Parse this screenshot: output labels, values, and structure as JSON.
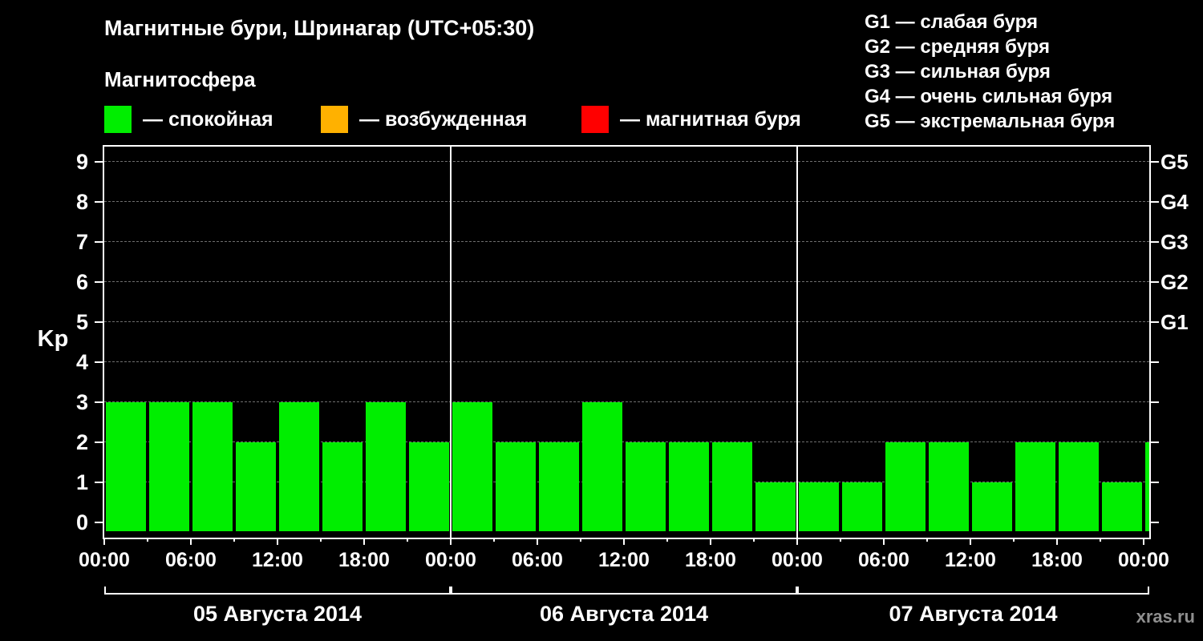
{
  "title": "Магнитные бури, Шринагар (UTC+05:30)",
  "legend": {
    "heading": "Магнитосфера",
    "items": [
      {
        "label": "— спокойная",
        "color": "#00ee00"
      },
      {
        "label": "— возбужденная",
        "color": "#ffb100"
      },
      {
        "label": "— магнитная буря",
        "color": "#ff0000"
      }
    ]
  },
  "storm_scale": {
    "items": [
      "G1 — слабая буря",
      "G2 — средняя буря",
      "G3 — сильная буря",
      "G4 — очень сильная буря",
      "G5 — экстремальная буря"
    ]
  },
  "watermark": "xras.ru",
  "chart_data": {
    "type": "bar",
    "title": "Магнитные бури, Шринагар (UTC+05:30)",
    "ylabel": "Kp",
    "xlabel": "",
    "ylim": [
      0,
      9
    ],
    "interval_hours": 3,
    "bar_color": "#00ee00",
    "grid": "dashed horizontal gridlines at each integer, solid white vertical lines at day boundaries",
    "legend_position": "top",
    "days": [
      {
        "date": "05 Августа 2014",
        "values": [
          3,
          3,
          3,
          2,
          3,
          2,
          3,
          2
        ]
      },
      {
        "date": "06 Августа 2014",
        "values": [
          3,
          2,
          2,
          3,
          2,
          2,
          2,
          1
        ]
      },
      {
        "date": "07 Августа 2014",
        "values": [
          1,
          1,
          2,
          2,
          1,
          2,
          2,
          1
        ]
      }
    ],
    "trailing_value": 2,
    "x_tick_labels": [
      "00:00",
      "06:00",
      "12:00",
      "18:00",
      "00:00",
      "06:00",
      "12:00",
      "18:00",
      "00:00",
      "06:00",
      "12:00",
      "18:00",
      "00:00"
    ],
    "y_ticks": [
      0,
      1,
      2,
      3,
      4,
      5,
      6,
      7,
      8,
      9
    ],
    "right_axis_labels": [
      {
        "value": 5,
        "label": "G1"
      },
      {
        "value": 6,
        "label": "G2"
      },
      {
        "value": 7,
        "label": "G3"
      },
      {
        "value": 8,
        "label": "G4"
      },
      {
        "value": 9,
        "label": "G5"
      }
    ],
    "colors": {
      "background": "#000000",
      "text": "#ffffff",
      "quiet": "#00ee00",
      "excited": "#ffb100",
      "storm": "#ff0000",
      "gridline": "#6e6e6e"
    }
  }
}
